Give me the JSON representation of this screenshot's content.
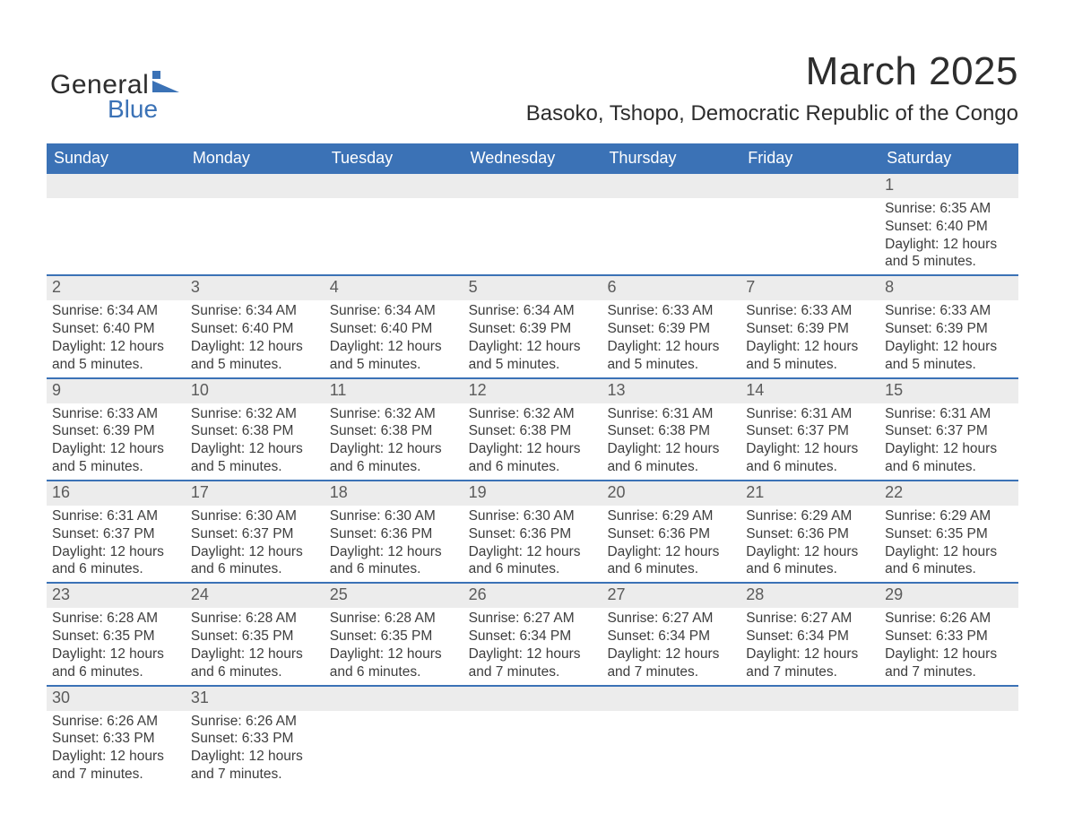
{
  "logo": {
    "word1": "General",
    "word2": "Blue",
    "mark_color": "#3b72b6",
    "text_color_dark": "#2d2d2d"
  },
  "title": {
    "month": "March 2025",
    "location": "Basoko, Tshopo, Democratic Republic of the Congo"
  },
  "colors": {
    "header_bg": "#3b72b6",
    "header_fg": "#ffffff",
    "daynum_bg": "#ececec",
    "row_divider": "#3b72b6",
    "body_text": "#3d3d3d",
    "page_bg": "#ffffff"
  },
  "fontsizes_pt": {
    "month_title": 33,
    "location_title": 18,
    "weekday_header": 14,
    "day_number": 14,
    "cell_body": 12,
    "logo": 22
  },
  "calendar": {
    "weekday_labels": [
      "Sunday",
      "Monday",
      "Tuesday",
      "Wednesday",
      "Thursday",
      "Friday",
      "Saturday"
    ],
    "weeks": [
      [
        null,
        null,
        null,
        null,
        null,
        null,
        {
          "n": "1",
          "sunrise": "Sunrise: 6:35 AM",
          "sunset": "Sunset: 6:40 PM",
          "day1": "Daylight: 12 hours",
          "day2": "and 5 minutes."
        }
      ],
      [
        {
          "n": "2",
          "sunrise": "Sunrise: 6:34 AM",
          "sunset": "Sunset: 6:40 PM",
          "day1": "Daylight: 12 hours",
          "day2": "and 5 minutes."
        },
        {
          "n": "3",
          "sunrise": "Sunrise: 6:34 AM",
          "sunset": "Sunset: 6:40 PM",
          "day1": "Daylight: 12 hours",
          "day2": "and 5 minutes."
        },
        {
          "n": "4",
          "sunrise": "Sunrise: 6:34 AM",
          "sunset": "Sunset: 6:40 PM",
          "day1": "Daylight: 12 hours",
          "day2": "and 5 minutes."
        },
        {
          "n": "5",
          "sunrise": "Sunrise: 6:34 AM",
          "sunset": "Sunset: 6:39 PM",
          "day1": "Daylight: 12 hours",
          "day2": "and 5 minutes."
        },
        {
          "n": "6",
          "sunrise": "Sunrise: 6:33 AM",
          "sunset": "Sunset: 6:39 PM",
          "day1": "Daylight: 12 hours",
          "day2": "and 5 minutes."
        },
        {
          "n": "7",
          "sunrise": "Sunrise: 6:33 AM",
          "sunset": "Sunset: 6:39 PM",
          "day1": "Daylight: 12 hours",
          "day2": "and 5 minutes."
        },
        {
          "n": "8",
          "sunrise": "Sunrise: 6:33 AM",
          "sunset": "Sunset: 6:39 PM",
          "day1": "Daylight: 12 hours",
          "day2": "and 5 minutes."
        }
      ],
      [
        {
          "n": "9",
          "sunrise": "Sunrise: 6:33 AM",
          "sunset": "Sunset: 6:39 PM",
          "day1": "Daylight: 12 hours",
          "day2": "and 5 minutes."
        },
        {
          "n": "10",
          "sunrise": "Sunrise: 6:32 AM",
          "sunset": "Sunset: 6:38 PM",
          "day1": "Daylight: 12 hours",
          "day2": "and 5 minutes."
        },
        {
          "n": "11",
          "sunrise": "Sunrise: 6:32 AM",
          "sunset": "Sunset: 6:38 PM",
          "day1": "Daylight: 12 hours",
          "day2": "and 6 minutes."
        },
        {
          "n": "12",
          "sunrise": "Sunrise: 6:32 AM",
          "sunset": "Sunset: 6:38 PM",
          "day1": "Daylight: 12 hours",
          "day2": "and 6 minutes."
        },
        {
          "n": "13",
          "sunrise": "Sunrise: 6:31 AM",
          "sunset": "Sunset: 6:38 PM",
          "day1": "Daylight: 12 hours",
          "day2": "and 6 minutes."
        },
        {
          "n": "14",
          "sunrise": "Sunrise: 6:31 AM",
          "sunset": "Sunset: 6:37 PM",
          "day1": "Daylight: 12 hours",
          "day2": "and 6 minutes."
        },
        {
          "n": "15",
          "sunrise": "Sunrise: 6:31 AM",
          "sunset": "Sunset: 6:37 PM",
          "day1": "Daylight: 12 hours",
          "day2": "and 6 minutes."
        }
      ],
      [
        {
          "n": "16",
          "sunrise": "Sunrise: 6:31 AM",
          "sunset": "Sunset: 6:37 PM",
          "day1": "Daylight: 12 hours",
          "day2": "and 6 minutes."
        },
        {
          "n": "17",
          "sunrise": "Sunrise: 6:30 AM",
          "sunset": "Sunset: 6:37 PM",
          "day1": "Daylight: 12 hours",
          "day2": "and 6 minutes."
        },
        {
          "n": "18",
          "sunrise": "Sunrise: 6:30 AM",
          "sunset": "Sunset: 6:36 PM",
          "day1": "Daylight: 12 hours",
          "day2": "and 6 minutes."
        },
        {
          "n": "19",
          "sunrise": "Sunrise: 6:30 AM",
          "sunset": "Sunset: 6:36 PM",
          "day1": "Daylight: 12 hours",
          "day2": "and 6 minutes."
        },
        {
          "n": "20",
          "sunrise": "Sunrise: 6:29 AM",
          "sunset": "Sunset: 6:36 PM",
          "day1": "Daylight: 12 hours",
          "day2": "and 6 minutes."
        },
        {
          "n": "21",
          "sunrise": "Sunrise: 6:29 AM",
          "sunset": "Sunset: 6:36 PM",
          "day1": "Daylight: 12 hours",
          "day2": "and 6 minutes."
        },
        {
          "n": "22",
          "sunrise": "Sunrise: 6:29 AM",
          "sunset": "Sunset: 6:35 PM",
          "day1": "Daylight: 12 hours",
          "day2": "and 6 minutes."
        }
      ],
      [
        {
          "n": "23",
          "sunrise": "Sunrise: 6:28 AM",
          "sunset": "Sunset: 6:35 PM",
          "day1": "Daylight: 12 hours",
          "day2": "and 6 minutes."
        },
        {
          "n": "24",
          "sunrise": "Sunrise: 6:28 AM",
          "sunset": "Sunset: 6:35 PM",
          "day1": "Daylight: 12 hours",
          "day2": "and 6 minutes."
        },
        {
          "n": "25",
          "sunrise": "Sunrise: 6:28 AM",
          "sunset": "Sunset: 6:35 PM",
          "day1": "Daylight: 12 hours",
          "day2": "and 6 minutes."
        },
        {
          "n": "26",
          "sunrise": "Sunrise: 6:27 AM",
          "sunset": "Sunset: 6:34 PM",
          "day1": "Daylight: 12 hours",
          "day2": "and 7 minutes."
        },
        {
          "n": "27",
          "sunrise": "Sunrise: 6:27 AM",
          "sunset": "Sunset: 6:34 PM",
          "day1": "Daylight: 12 hours",
          "day2": "and 7 minutes."
        },
        {
          "n": "28",
          "sunrise": "Sunrise: 6:27 AM",
          "sunset": "Sunset: 6:34 PM",
          "day1": "Daylight: 12 hours",
          "day2": "and 7 minutes."
        },
        {
          "n": "29",
          "sunrise": "Sunrise: 6:26 AM",
          "sunset": "Sunset: 6:33 PM",
          "day1": "Daylight: 12 hours",
          "day2": "and 7 minutes."
        }
      ],
      [
        {
          "n": "30",
          "sunrise": "Sunrise: 6:26 AM",
          "sunset": "Sunset: 6:33 PM",
          "day1": "Daylight: 12 hours",
          "day2": "and 7 minutes."
        },
        {
          "n": "31",
          "sunrise": "Sunrise: 6:26 AM",
          "sunset": "Sunset: 6:33 PM",
          "day1": "Daylight: 12 hours",
          "day2": "and 7 minutes."
        },
        null,
        null,
        null,
        null,
        null
      ]
    ]
  }
}
